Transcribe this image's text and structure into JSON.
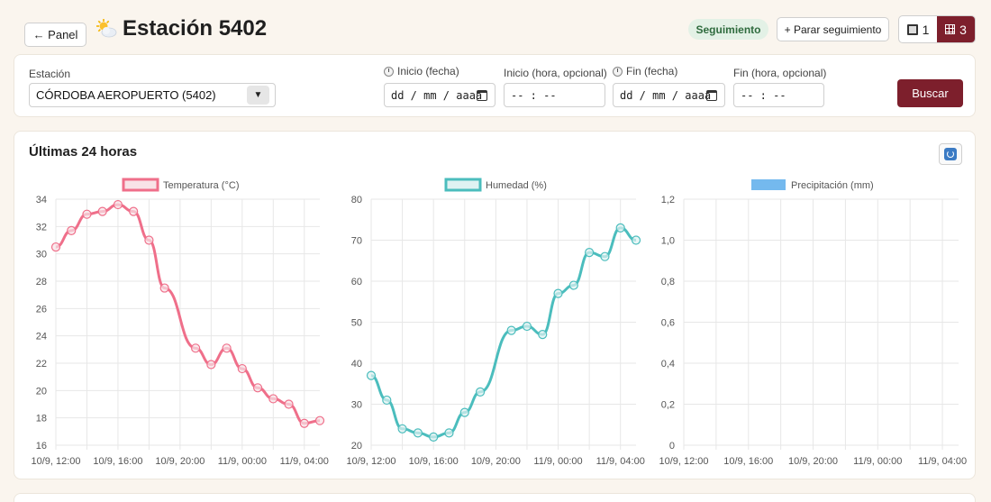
{
  "header": {
    "back_label": "← Panel",
    "title": "Estación 5402",
    "follow_badge": "Seguimiento",
    "stop_follow_label": "+ Parar seguimiento",
    "view_single_label": "1",
    "view_grid_label": "3"
  },
  "filters": {
    "station_label": "Estación",
    "station_value": "CÓRDOBA AEROPUERTO (5402)",
    "start_date_label": "Inicio (fecha)",
    "start_date_placeholder": "dd / mm / aaaa",
    "start_time_label": "Inicio (hora, opcional)",
    "start_time_placeholder": "-- : --",
    "end_date_label": "Fin (fecha)",
    "end_date_placeholder": "dd / mm / aaaa",
    "end_time_label": "Fin (hora, opcional)",
    "end_time_placeholder": "-- : --",
    "search_label": "Buscar"
  },
  "panel": {
    "title": "Últimas 24 horas"
  },
  "colors": {
    "accent": "#7d1f2c",
    "temperature": "#ef6f8a",
    "humidity": "#4bbdbd",
    "precipitation": "#74b9ee"
  },
  "chart_data": [
    {
      "type": "line",
      "legend": "Temperatura (°C)",
      "x": [
        "10/9, 12:00",
        "10/9, 13:00",
        "10/9, 14:00",
        "10/9, 15:00",
        "10/9, 16:00",
        "10/9, 17:00",
        "10/9, 18:00",
        "10/9, 19:00",
        "10/9, 21:00",
        "10/9, 22:00",
        "10/9, 23:00",
        "11/9, 00:00",
        "11/9, 01:00",
        "11/9, 02:00",
        "11/9, 03:00",
        "11/9, 04:00",
        "11/9, 05:00"
      ],
      "xnum": [
        0,
        1,
        2,
        3,
        4,
        5,
        6,
        7,
        9,
        10,
        11,
        12,
        13,
        14,
        15,
        16,
        17
      ],
      "values": [
        30.5,
        31.7,
        32.9,
        33.1,
        33.6,
        33.1,
        31.0,
        27.5,
        23.1,
        21.9,
        23.1,
        21.6,
        20.2,
        19.4,
        19.0,
        17.6,
        17.8
      ],
      "ylim": [
        16,
        34
      ],
      "yticks": [
        "34",
        "32",
        "30",
        "28",
        "26",
        "24",
        "22",
        "20",
        "18",
        "16"
      ],
      "xticks": [
        "10/9, 12:00",
        "10/9, 16:00",
        "10/9, 20:00",
        "11/9, 00:00",
        "11/9, 04:00"
      ],
      "grid": true,
      "legend_position": "top"
    },
    {
      "type": "line",
      "legend": "Humedad (%)",
      "x": [
        "10/9, 12:00",
        "10/9, 13:00",
        "10/9, 14:00",
        "10/9, 15:00",
        "10/9, 16:00",
        "10/9, 17:00",
        "10/9, 18:00",
        "10/9, 19:00",
        "10/9, 21:00",
        "10/9, 22:00",
        "10/9, 23:00",
        "11/9, 00:00",
        "11/9, 01:00",
        "11/9, 02:00",
        "11/9, 03:00",
        "11/9, 04:00",
        "11/9, 05:00"
      ],
      "xnum": [
        0,
        1,
        2,
        3,
        4,
        5,
        6,
        7,
        9,
        10,
        11,
        12,
        13,
        14,
        15,
        16,
        17
      ],
      "values": [
        37,
        31,
        24,
        23,
        22,
        23,
        28,
        33,
        48,
        49,
        47,
        57,
        59,
        67,
        66,
        73,
        70
      ],
      "ylim": [
        20,
        80
      ],
      "yticks": [
        "80",
        "70",
        "60",
        "50",
        "40",
        "30",
        "20"
      ],
      "xticks": [
        "10/9, 12:00",
        "10/9, 16:00",
        "10/9, 20:00",
        "11/9, 00:00",
        "11/9, 04:00"
      ],
      "grid": true,
      "legend_position": "top"
    },
    {
      "type": "bar",
      "legend": "Precipitación (mm)",
      "values": [],
      "ylim": [
        0,
        1.2
      ],
      "yticks": [
        "1,2",
        "1,0",
        "0,8",
        "0,6",
        "0,4",
        "0,2",
        "0"
      ],
      "xticks": [
        "10/9, 12:00",
        "10/9, 16:00",
        "10/9, 20:00",
        "11/9, 00:00",
        "11/9, 04:00"
      ],
      "grid": true,
      "legend_position": "top"
    }
  ]
}
